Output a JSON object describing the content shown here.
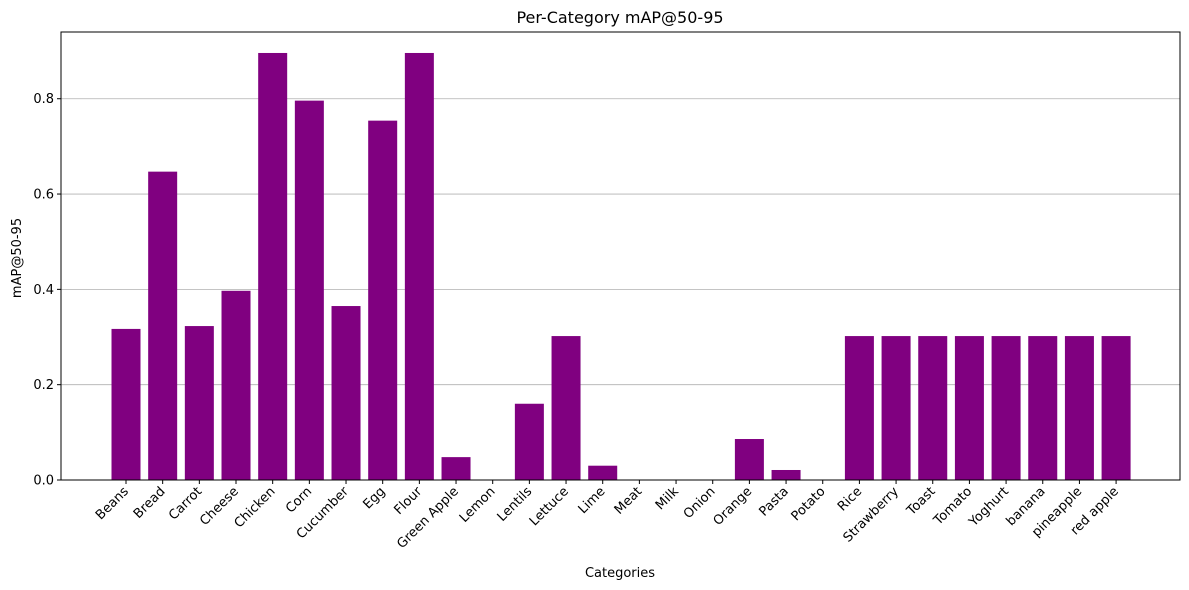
{
  "chart_data": {
    "type": "bar",
    "title": "Per-Category mAP@50-95",
    "xlabel": "Categories",
    "ylabel": "mAP@50-95",
    "ylim": [
      0,
      0.94
    ],
    "yticks": [
      "0.0",
      "0.2",
      "0.4",
      "0.6",
      "0.8"
    ],
    "grid": "y",
    "bar_color": "#800080",
    "categories": [
      "Beans",
      "Bread",
      "Carrot",
      "Cheese",
      "Chicken",
      "Corn",
      "Cucumber",
      "Egg",
      "Flour",
      "Green Apple",
      "Lemon",
      "Lentils",
      "Lettuce",
      "Lime",
      "Meat",
      "Milk",
      "Onion",
      "Orange",
      "Pasta",
      "Potato",
      "Rice",
      "Strawberry",
      "Toast",
      "Tomato",
      "Yoghurt",
      "banana",
      "pineapple",
      "red apple"
    ],
    "values": [
      0.317,
      0.647,
      0.323,
      0.397,
      0.896,
      0.796,
      0.365,
      0.754,
      0.896,
      0.048,
      0.0,
      0.16,
      0.302,
      0.03,
      0.0,
      0.0,
      0.0,
      0.086,
      0.021,
      0.0,
      0.302,
      0.302,
      0.302,
      0.302,
      0.302,
      0.302,
      0.302,
      0.302
    ]
  }
}
